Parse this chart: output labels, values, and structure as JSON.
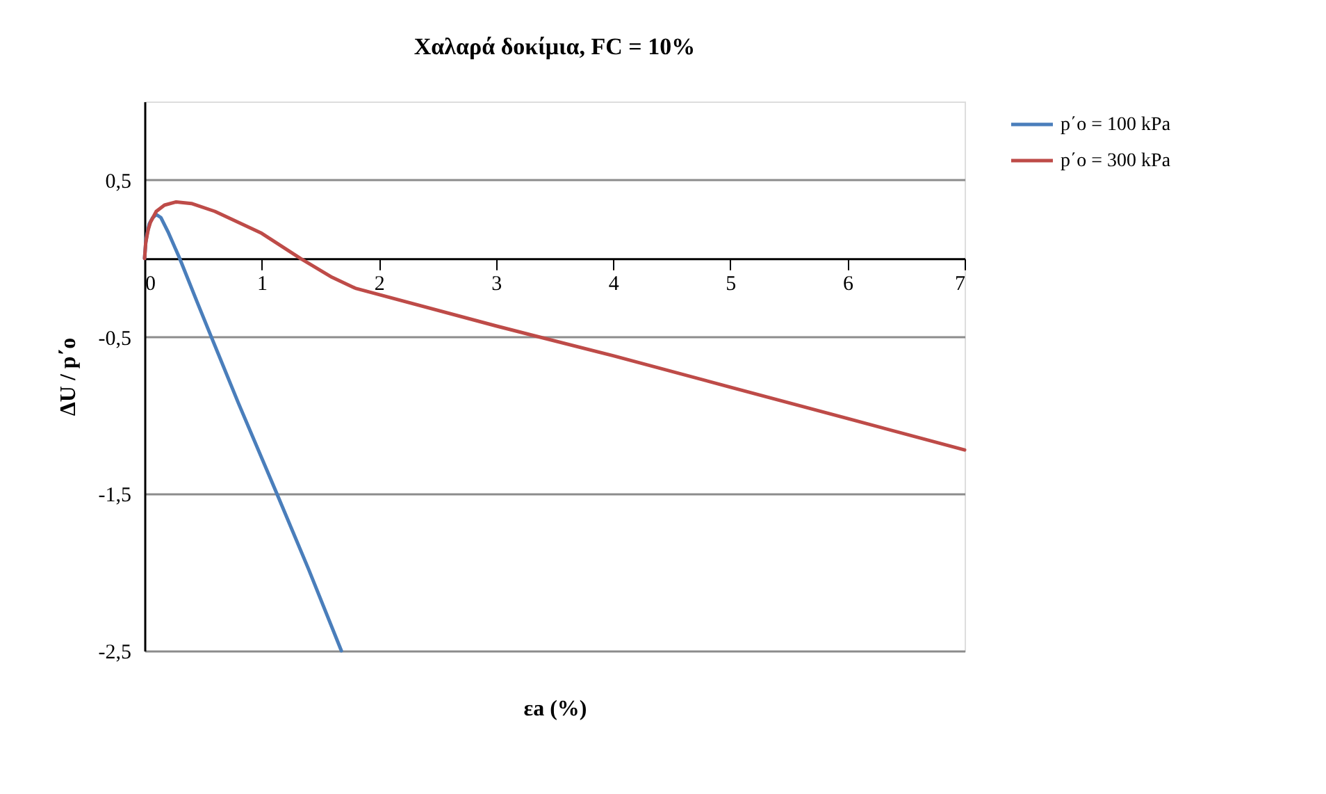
{
  "chart_data": {
    "type": "line",
    "title": "Χαλαρά δοκίμια, FC = 10%",
    "xlabel": "εa (%)",
    "ylabel": "ΔU / p΄o",
    "xlim": [
      0,
      7
    ],
    "xticks": [
      0,
      1,
      2,
      3,
      4,
      5,
      6,
      7
    ],
    "ylim": [
      -2.5,
      1
    ],
    "yticks": [
      {
        "value": 0.5,
        "label": "0,5"
      },
      {
        "value": -0.5,
        "label": "-0,5"
      },
      {
        "value": -1.5,
        "label": "-1,5"
      },
      {
        "value": -2.5,
        "label": "-2,5"
      }
    ],
    "grid": "y",
    "legend": "right",
    "line_style": "solid",
    "marker": "none",
    "series": [
      {
        "name": "p΄o = 100 kPa",
        "color": "#4a7ebb",
        "x": [
          0,
          0.01,
          0.02,
          0.04,
          0.07,
          0.1,
          0.14,
          0.2,
          0.3,
          0.45,
          0.57,
          0.8,
          1.13,
          1.4,
          1.68
        ],
        "values": [
          0,
          0.1,
          0.15,
          0.22,
          0.26,
          0.28,
          0.26,
          0.17,
          0,
          -0.28,
          -0.5,
          -0.92,
          -1.5,
          -1.98,
          -2.5
        ]
      },
      {
        "name": "p΄o = 300 kPa",
        "color": "#be4b48",
        "x": [
          0,
          0.01,
          0.03,
          0.05,
          0.1,
          0.17,
          0.27,
          0.4,
          0.6,
          0.8,
          1,
          1.33,
          1.6,
          1.8,
          1.95,
          2,
          3,
          4,
          5,
          6,
          7
        ],
        "values": [
          0,
          0.1,
          0.18,
          0.23,
          0.3,
          0.34,
          0.36,
          0.35,
          0.3,
          0.23,
          0.16,
          0,
          -0.12,
          -0.19,
          -0.22,
          -0.23,
          -0.43,
          -0.62,
          -0.82,
          -1.02,
          -1.22
        ]
      }
    ]
  }
}
